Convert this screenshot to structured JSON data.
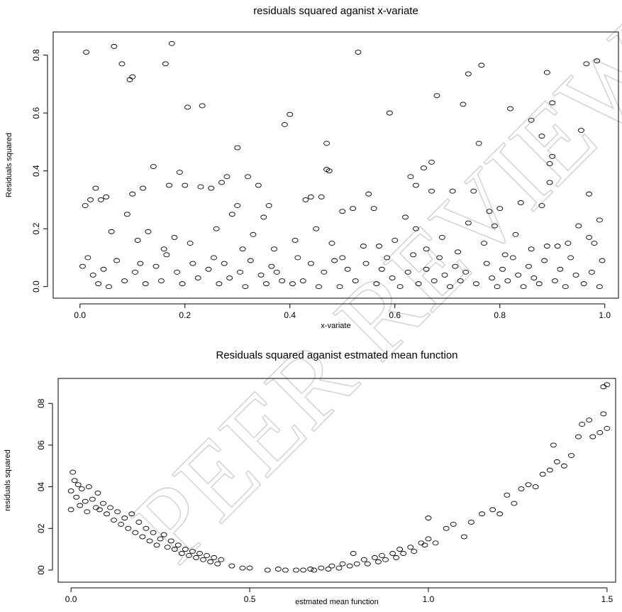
{
  "watermark": "PEER REVIEW",
  "chart_data": [
    {
      "type": "scatter",
      "title": "residuals squared aganist x-variate",
      "x_label": "x-variate",
      "y_label": "Residuals squared",
      "color": "#000000",
      "xlim": [
        -0.051,
        1.026
      ],
      "ylim": [
        -0.04,
        0.88
      ],
      "xticks": [
        {
          "value": 0,
          "label": "0.0"
        },
        0.2,
        0.4,
        0.6,
        0.8,
        {
          "value": 1,
          "label": "1.0"
        }
      ],
      "yticks": [
        {
          "value": 0,
          "label": "0.0"
        },
        0.2,
        0.4,
        0.6,
        0.8
      ],
      "x": [
        0.012,
        0.065,
        0.08,
        0.095,
        0.1,
        0.175,
        0.163,
        0.205,
        0.233,
        0.3,
        0.39,
        0.4,
        0.47,
        0.53,
        0.59,
        0.68,
        0.73,
        0.74,
        0.765,
        0.82,
        0.86,
        0.89,
        0.9,
        0.955,
        0.965,
        0.985,
        0.76,
        0.88,
        0.9,
        0.895,
        0.895,
        0.14,
        0.47,
        0.475,
        0.655,
        0.67,
        0.19,
        0.2,
        0.17,
        0.28,
        0.32,
        0.34,
        0.03,
        0.04,
        0.05,
        0.01,
        0.02,
        0.09,
        0.1,
        0.12,
        0.23,
        0.25,
        0.27,
        0.3,
        0.36,
        0.43,
        0.44,
        0.46,
        0.5,
        0.52,
        0.55,
        0.56,
        0.63,
        0.64,
        0.67,
        0.71,
        0.75,
        0.78,
        0.8,
        0.84,
        0.88,
        0.97,
        0.99,
        0.06,
        0.11,
        0.13,
        0.16,
        0.18,
        0.21,
        0.26,
        0.29,
        0.31,
        0.33,
        0.35,
        0.37,
        0.41,
        0.45,
        0.48,
        0.5,
        0.54,
        0.57,
        0.6,
        0.62,
        0.64,
        0.66,
        0.69,
        0.72,
        0.74,
        0.77,
        0.79,
        0.81,
        0.83,
        0.86,
        0.89,
        0.91,
        0.93,
        0.95,
        0.97,
        0.98,
        0.005,
        0.015,
        0.025,
        0.035,
        0.045,
        0.055,
        0.07,
        0.085,
        0.105,
        0.115,
        0.125,
        0.145,
        0.155,
        0.165,
        0.185,
        0.195,
        0.215,
        0.225,
        0.245,
        0.255,
        0.265,
        0.275,
        0.285,
        0.305,
        0.315,
        0.325,
        0.345,
        0.355,
        0.365,
        0.375,
        0.385,
        0.405,
        0.415,
        0.425,
        0.44,
        0.455,
        0.465,
        0.485,
        0.495,
        0.51,
        0.525,
        0.545,
        0.565,
        0.575,
        0.585,
        0.595,
        0.61,
        0.625,
        0.635,
        0.645,
        0.66,
        0.675,
        0.685,
        0.695,
        0.705,
        0.715,
        0.725,
        0.735,
        0.755,
        0.775,
        0.785,
        0.795,
        0.805,
        0.815,
        0.825,
        0.835,
        0.845,
        0.855,
        0.865,
        0.875,
        0.885,
        0.905,
        0.915,
        0.925,
        0.935,
        0.945,
        0.96,
        0.975,
        0.99,
        0.995
      ],
      "values": [
        0.81,
        0.83,
        0.77,
        0.715,
        0.725,
        0.84,
        0.77,
        0.62,
        0.625,
        0.48,
        0.56,
        0.595,
        0.495,
        0.81,
        0.6,
        0.66,
        0.63,
        0.735,
        0.765,
        0.615,
        0.575,
        0.74,
        0.635,
        0.54,
        0.77,
        0.78,
        0.495,
        0.52,
        0.45,
        0.425,
        0.36,
        0.415,
        0.405,
        0.4,
        0.41,
        0.43,
        0.395,
        0.35,
        0.35,
        0.38,
        0.38,
        0.35,
        0.34,
        0.3,
        0.31,
        0.28,
        0.3,
        0.25,
        0.32,
        0.34,
        0.345,
        0.34,
        0.36,
        0.28,
        0.28,
        0.3,
        0.31,
        0.31,
        0.26,
        0.27,
        0.32,
        0.27,
        0.38,
        0.35,
        0.33,
        0.33,
        0.33,
        0.26,
        0.27,
        0.29,
        0.28,
        0.32,
        0.23,
        0.19,
        0.16,
        0.19,
        0.13,
        0.17,
        0.15,
        0.2,
        0.25,
        0.13,
        0.18,
        0.24,
        0.13,
        0.16,
        0.2,
        0.15,
        0.1,
        0.14,
        0.14,
        0.16,
        0.24,
        0.2,
        0.13,
        0.17,
        0.12,
        0.22,
        0.15,
        0.21,
        0.11,
        0.18,
        0.13,
        0.14,
        0.14,
        0.15,
        0.21,
        0.17,
        0.15,
        0.07,
        0.1,
        0.04,
        0.01,
        0.06,
        0.0,
        0.09,
        0.02,
        0.05,
        0.08,
        0.01,
        0.07,
        0.02,
        0.11,
        0.05,
        0.01,
        0.08,
        0.03,
        0.06,
        0.1,
        0.01,
        0.08,
        0.03,
        0.05,
        0.0,
        0.09,
        0.04,
        0.01,
        0.07,
        0.05,
        0.02,
        0.01,
        0.1,
        0.02,
        0.08,
        0.0,
        0.05,
        0.09,
        0.0,
        0.06,
        0.02,
        0.08,
        0.01,
        0.06,
        0.1,
        0.03,
        0.0,
        0.05,
        0.11,
        0.01,
        0.06,
        0.02,
        0.1,
        0.04,
        0.0,
        0.07,
        0.02,
        0.05,
        0.01,
        0.08,
        0.03,
        0.0,
        0.06,
        0.02,
        0.1,
        0.04,
        0.0,
        0.07,
        0.03,
        0.01,
        0.09,
        0.02,
        0.06,
        0.0,
        0.1,
        0.04,
        0.01,
        0.05,
        0.0,
        0.09
      ]
    },
    {
      "type": "scatter",
      "title": "Residuals squared aganist estmated mean function",
      "x_label": "estmated mean function",
      "y_label": "residuals squared",
      "color": "#000000",
      "xlim": [
        -0.036,
        1.524
      ],
      "ylim": [
        -0.058,
        0.92
      ],
      "xticks": [
        {
          "value": 0,
          "label": "0.0"
        },
        0.5,
        {
          "value": 1,
          "label": "1.0"
        },
        1.5
      ],
      "yticks": [
        {
          "value": 0,
          "label": "00"
        },
        {
          "value": 0.2,
          "label": "02"
        },
        {
          "value": 0.4,
          "label": "04"
        },
        {
          "value": 0.6,
          "label": "06"
        },
        {
          "value": 0.8,
          "label": "08"
        }
      ],
      "x": [
        0.0,
        0.0,
        0.005,
        0.01,
        0.015,
        0.02,
        0.025,
        0.03,
        0.04,
        0.045,
        0.05,
        0.06,
        0.07,
        0.075,
        0.08,
        0.09,
        0.1,
        0.11,
        0.12,
        0.13,
        0.14,
        0.15,
        0.16,
        0.17,
        0.18,
        0.19,
        0.2,
        0.21,
        0.22,
        0.23,
        0.24,
        0.25,
        0.26,
        0.27,
        0.28,
        0.29,
        0.3,
        0.31,
        0.32,
        0.33,
        0.34,
        0.35,
        0.36,
        0.37,
        0.38,
        0.39,
        0.4,
        0.41,
        0.42,
        0.45,
        0.48,
        0.5,
        0.55,
        0.58,
        0.6,
        0.63,
        0.65,
        0.67,
        0.68,
        0.7,
        0.72,
        0.73,
        0.75,
        0.76,
        0.78,
        0.79,
        0.8,
        0.82,
        0.83,
        0.85,
        0.86,
        0.87,
        0.88,
        0.9,
        0.91,
        0.92,
        0.93,
        0.95,
        0.96,
        0.98,
        0.99,
        1.0,
        1.0,
        1.02,
        1.05,
        1.07,
        1.1,
        1.12,
        1.15,
        1.18,
        1.2,
        1.22,
        1.24,
        1.26,
        1.28,
        1.3,
        1.32,
        1.34,
        1.35,
        1.36,
        1.38,
        1.4,
        1.42,
        1.43,
        1.45,
        1.46,
        1.48,
        1.49,
        1.49,
        1.5,
        1.5
      ],
      "values": [
        0.38,
        0.29,
        0.47,
        0.43,
        0.35,
        0.41,
        0.31,
        0.39,
        0.33,
        0.28,
        0.4,
        0.34,
        0.3,
        0.37,
        0.29,
        0.32,
        0.27,
        0.3,
        0.24,
        0.28,
        0.22,
        0.25,
        0.2,
        0.27,
        0.18,
        0.23,
        0.16,
        0.2,
        0.14,
        0.18,
        0.12,
        0.15,
        0.17,
        0.11,
        0.14,
        0.1,
        0.12,
        0.08,
        0.1,
        0.07,
        0.09,
        0.06,
        0.08,
        0.05,
        0.07,
        0.04,
        0.06,
        0.03,
        0.05,
        0.02,
        0.01,
        0.01,
        0.0,
        0.005,
        0.0,
        0.0,
        0.0,
        0.005,
        0.0,
        0.01,
        0.005,
        0.02,
        0.01,
        0.03,
        0.02,
        0.08,
        0.03,
        0.05,
        0.03,
        0.06,
        0.04,
        0.07,
        0.05,
        0.08,
        0.06,
        0.1,
        0.08,
        0.11,
        0.09,
        0.13,
        0.12,
        0.15,
        0.25,
        0.13,
        0.2,
        0.22,
        0.16,
        0.23,
        0.27,
        0.29,
        0.27,
        0.36,
        0.32,
        0.39,
        0.41,
        0.4,
        0.46,
        0.48,
        0.6,
        0.52,
        0.5,
        0.55,
        0.64,
        0.7,
        0.72,
        0.64,
        0.66,
        0.75,
        0.88,
        0.89,
        0.68
      ]
    }
  ]
}
